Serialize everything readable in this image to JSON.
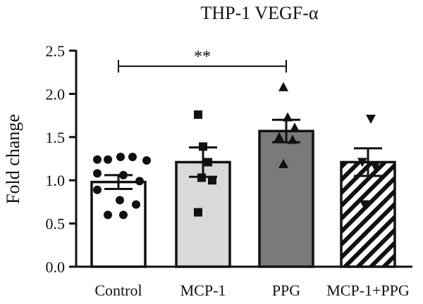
{
  "chart_data": {
    "type": "bar",
    "title": "THP-1 VEGF-α",
    "xlabel": "",
    "ylabel": "Fold change",
    "ylim": [
      0,
      2.5
    ],
    "yticks": [
      "0.0",
      "0.5",
      "1.0",
      "1.5",
      "2.0",
      "2.5"
    ],
    "ytick_values": [
      0,
      0.5,
      1.0,
      1.5,
      2.0,
      2.5
    ],
    "grid": false,
    "categories": [
      "Control",
      "MCP-1",
      "PPG",
      "MCP-1+PPG"
    ],
    "values": [
      0.98,
      1.21,
      1.57,
      1.21
    ],
    "sem": [
      0.08,
      0.17,
      0.13,
      0.16
    ],
    "colors": [
      "#ffffff",
      "#d9d9d9",
      "#7a7a7a",
      "hatched"
    ],
    "points": [
      [
        1.24,
        1.24,
        1.27,
        1.27,
        1.23,
        1.08,
        1.06,
        0.99,
        0.89,
        0.77,
        0.72,
        0.6,
        0.6
      ],
      [
        1.76,
        1.39,
        1.21,
        1.03,
        1.0,
        0.63
      ],
      [
        2.08,
        1.73,
        1.61,
        1.5,
        1.47,
        1.19
      ],
      [
        1.71,
        1.21,
        1.16,
        0.72
      ]
    ],
    "markers": [
      "circle",
      "square",
      "triangle-up",
      "triangle-down"
    ],
    "significance": {
      "from": "Control",
      "to": "PPG",
      "label": "**",
      "y": 2.32
    }
  }
}
